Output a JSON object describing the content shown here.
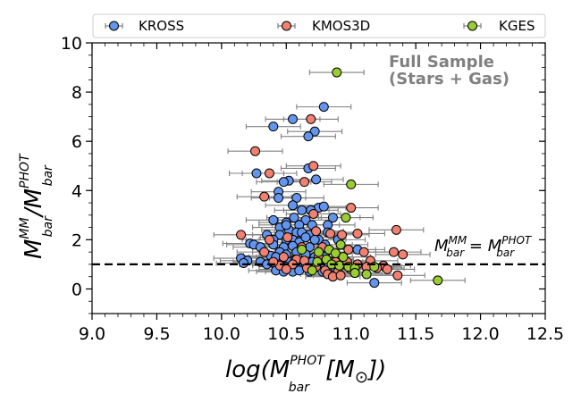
{
  "chart_data": {
    "type": "scatter",
    "title": "",
    "annotation": {
      "line1": "Full Sample",
      "line2": "(Stars + Gas)"
    },
    "xlabel": {
      "pre": "log(M",
      "sup": "PHOT",
      "sub": "bar",
      "post": " [M",
      "sun": "⊙",
      "end": "])"
    },
    "ylabel": {
      "num": "M",
      "num_sup": "MM",
      "num_sub": "bar",
      "slash": "/",
      "den": "M",
      "den_sup": "PHOT",
      "den_sub": "bar"
    },
    "ref_line": {
      "y": 1.0,
      "style": "dashed",
      "label": {
        "l": "M",
        "l_sup": "MM",
        "l_sub": "bar",
        "eq": " = ",
        "r": "M",
        "r_sup": "PHOT",
        "r_sub": "bar"
      }
    },
    "xlim": [
      9.0,
      12.5
    ],
    "ylim": [
      -1,
      10
    ],
    "xticks": [
      "9.0",
      "9.5",
      "10.0",
      "10.5",
      "11.0",
      "11.5",
      "12.0",
      "12.5"
    ],
    "yticks": [
      "0",
      "2",
      "4",
      "6",
      "8",
      "10"
    ],
    "legend": {
      "position": "top",
      "entries": [
        "KROSS",
        "KMOS3D",
        "KGES"
      ]
    },
    "colors": {
      "KROSS": "#6495ED",
      "KMOS3D": "#F08070",
      "KGES": "#9ACD32",
      "error": "#808080",
      "edge": "#000000"
    },
    "series": [
      {
        "name": "KROSS",
        "points": [
          [
            10.79,
            7.4
          ],
          [
            10.55,
            6.9
          ],
          [
            10.72,
            6.4
          ],
          [
            10.4,
            6.6
          ],
          [
            10.67,
            6.2
          ],
          [
            10.27,
            4.7
          ],
          [
            10.67,
            4.9
          ],
          [
            10.52,
            4.4
          ],
          [
            10.48,
            4.35
          ],
          [
            10.73,
            4.45
          ],
          [
            10.44,
            3.95
          ],
          [
            10.44,
            3.7
          ],
          [
            10.58,
            3.7
          ],
          [
            10.75,
            3.3
          ],
          [
            10.79,
            3.35
          ],
          [
            10.62,
            3.2
          ],
          [
            10.55,
            3.4
          ],
          [
            10.69,
            3.2
          ],
          [
            10.86,
            2.9
          ],
          [
            10.4,
            2.8
          ],
          [
            10.56,
            2.9
          ],
          [
            10.65,
            2.8
          ],
          [
            10.7,
            2.6
          ],
          [
            10.5,
            2.7
          ],
          [
            10.6,
            2.6
          ],
          [
            10.82,
            2.6
          ],
          [
            10.45,
            2.5
          ],
          [
            10.52,
            2.4
          ],
          [
            10.58,
            2.3
          ],
          [
            10.62,
            2.3
          ],
          [
            10.45,
            2.2
          ],
          [
            10.68,
            2.2
          ],
          [
            10.75,
            2.0
          ],
          [
            10.55,
            2.0
          ],
          [
            10.35,
            2.2
          ],
          [
            10.4,
            2.0
          ],
          [
            10.5,
            2.0
          ],
          [
            10.72,
            2.0
          ],
          [
            10.6,
            1.9
          ],
          [
            10.22,
            1.85
          ],
          [
            10.25,
            1.8
          ],
          [
            10.3,
            1.7
          ],
          [
            10.4,
            1.8
          ],
          [
            10.48,
            1.7
          ],
          [
            10.55,
            1.75
          ],
          [
            10.62,
            1.7
          ],
          [
            10.68,
            1.7
          ],
          [
            10.8,
            1.8
          ],
          [
            10.45,
            1.5
          ],
          [
            10.5,
            1.4
          ],
          [
            10.58,
            1.5
          ],
          [
            10.65,
            1.4
          ],
          [
            10.72,
            1.3
          ],
          [
            10.8,
            1.3
          ],
          [
            10.38,
            1.35
          ],
          [
            10.42,
            1.3
          ],
          [
            10.48,
            1.2
          ],
          [
            10.53,
            1.1
          ],
          [
            10.57,
            1.2
          ],
          [
            10.63,
            1.1
          ],
          [
            10.7,
            1.1
          ],
          [
            10.75,
            1.2
          ],
          [
            10.85,
            1.1
          ],
          [
            10.15,
            1.25
          ],
          [
            10.2,
            1.15
          ],
          [
            10.17,
            1.05
          ],
          [
            10.3,
            1.1
          ],
          [
            10.35,
            1.0
          ],
          [
            10.4,
            1.05
          ],
          [
            10.45,
            1.0
          ],
          [
            10.5,
            0.9
          ],
          [
            10.55,
            0.95
          ],
          [
            10.6,
            0.85
          ],
          [
            10.65,
            0.9
          ],
          [
            10.72,
            0.85
          ],
          [
            10.8,
            0.9
          ],
          [
            10.88,
            0.85
          ],
          [
            10.95,
            1.0
          ],
          [
            10.42,
            0.75
          ],
          [
            10.48,
            0.7
          ],
          [
            10.55,
            0.7
          ],
          [
            10.6,
            0.75
          ],
          [
            10.68,
            0.7
          ],
          [
            10.78,
            0.7
          ],
          [
            11.05,
            1.6
          ],
          [
            11.18,
            0.25
          ],
          [
            10.82,
            2.3
          ],
          [
            10.9,
            2.0
          ],
          [
            10.65,
            2.1
          ],
          [
            10.5,
            2.6
          ]
        ]
      },
      {
        "name": "KMOS3D",
        "points": [
          [
            10.69,
            6.9
          ],
          [
            10.26,
            5.6
          ],
          [
            10.71,
            5.0
          ],
          [
            10.37,
            4.7
          ],
          [
            10.64,
            4.35
          ],
          [
            10.33,
            3.75
          ],
          [
            10.71,
            3.05
          ],
          [
            11.0,
            3.3
          ],
          [
            10.73,
            2.35
          ],
          [
            10.84,
            2.25
          ],
          [
            10.93,
            2.2
          ],
          [
            11.05,
            2.25
          ],
          [
            11.35,
            2.4
          ],
          [
            10.15,
            2.2
          ],
          [
            10.37,
            2.0
          ],
          [
            10.51,
            2.1
          ],
          [
            10.62,
            1.7
          ],
          [
            10.78,
            1.7
          ],
          [
            10.98,
            1.6
          ],
          [
            11.1,
            1.5
          ],
          [
            11.33,
            1.5
          ],
          [
            11.4,
            1.4
          ],
          [
            10.33,
            1.5
          ],
          [
            10.48,
            1.3
          ],
          [
            10.58,
            1.2
          ],
          [
            10.64,
            1.15
          ],
          [
            10.75,
            1.3
          ],
          [
            10.88,
            1.1
          ],
          [
            10.97,
            1.1
          ],
          [
            11.05,
            1.0
          ],
          [
            11.15,
            1.15
          ],
          [
            11.25,
            0.95
          ],
          [
            11.28,
            0.8
          ],
          [
            10.45,
            0.95
          ],
          [
            10.55,
            1.0
          ],
          [
            10.66,
            0.85
          ],
          [
            10.73,
            0.9
          ],
          [
            10.8,
            0.75
          ],
          [
            10.9,
            0.7
          ],
          [
            11.0,
            0.8
          ],
          [
            11.12,
            0.9
          ],
          [
            11.2,
            0.85
          ],
          [
            10.82,
            0.6
          ],
          [
            10.86,
            0.5
          ],
          [
            10.92,
            0.55
          ],
          [
            11.36,
            0.55
          ],
          [
            10.5,
            0.8
          ],
          [
            10.4,
            1.1
          ]
        ]
      },
      {
        "name": "KGES",
        "points": [
          [
            10.89,
            8.8
          ],
          [
            11.0,
            4.25
          ],
          [
            10.96,
            2.9
          ],
          [
            10.92,
            1.8
          ],
          [
            10.83,
            1.6
          ],
          [
            10.75,
            1.5
          ],
          [
            10.88,
            1.45
          ],
          [
            10.94,
            1.3
          ],
          [
            10.81,
            1.2
          ],
          [
            10.74,
            1.1
          ],
          [
            10.85,
            1.0
          ],
          [
            10.91,
            0.95
          ],
          [
            10.98,
            0.9
          ],
          [
            11.03,
            0.85
          ],
          [
            11.18,
            0.9
          ],
          [
            10.7,
            0.75
          ],
          [
            11.03,
            0.65
          ],
          [
            11.12,
            0.6
          ],
          [
            11.67,
            0.35
          ],
          [
            10.62,
            1.6
          ]
        ]
      }
    ]
  }
}
